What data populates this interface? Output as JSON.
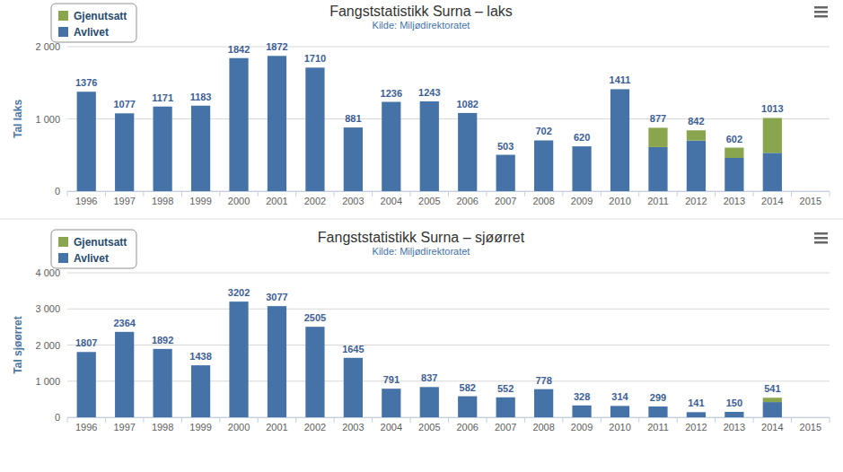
{
  "chart_data": [
    {
      "type": "bar",
      "title": "Fangststatistikk Surna – laks",
      "subtitle": "Kilde: Miljødirektoratet",
      "y_label": "Tal laks",
      "categories": [
        "1996",
        "1997",
        "1998",
        "1999",
        "2000",
        "2001",
        "2002",
        "2003",
        "2004",
        "2005",
        "2006",
        "2007",
        "2008",
        "2009",
        "2010",
        "2011",
        "2012",
        "2013",
        "2014",
        "2015"
      ],
      "series": [
        {
          "name": "Gjenutsatt",
          "color": "#89a54e",
          "values": [
            0,
            0,
            0,
            0,
            0,
            0,
            0,
            0,
            0,
            0,
            0,
            0,
            0,
            0,
            0,
            267,
            142,
            142,
            483,
            null
          ]
        },
        {
          "name": "Avlivet",
          "color": "#4572a7",
          "values": [
            1376,
            1077,
            1171,
            1183,
            1842,
            1872,
            1710,
            881,
            1236,
            1243,
            1082,
            503,
            702,
            620,
            1411,
            610,
            700,
            460,
            530,
            null
          ]
        }
      ],
      "totals": [
        1376,
        1077,
        1171,
        1183,
        1842,
        1872,
        1710,
        881,
        1236,
        1243,
        1082,
        503,
        702,
        620,
        1411,
        877,
        842,
        602,
        1013,
        null
      ],
      "stacked": true,
      "legend": "top-left",
      "grid": true,
      "ylim": [
        0,
        2000
      ],
      "yticks": [
        0,
        {
          "value": 1000,
          "label": "1 000"
        },
        {
          "value": 2000,
          "label": "2 000"
        }
      ]
    },
    {
      "type": "bar",
      "title": "Fangststatistikk Surna – sjøørret",
      "subtitle": "Kilde: Miljødirektoratet",
      "y_label": "Tal sjøørret",
      "categories": [
        "1996",
        "1997",
        "1998",
        "1999",
        "2000",
        "2001",
        "2002",
        "2003",
        "2004",
        "2005",
        "2006",
        "2007",
        "2008",
        "2009",
        "2010",
        "2011",
        "2012",
        "2013",
        "2014",
        "2015"
      ],
      "series": [
        {
          "name": "Gjenutsatt",
          "color": "#89a54e",
          "values": [
            0,
            0,
            0,
            0,
            0,
            0,
            0,
            0,
            0,
            0,
            0,
            0,
            0,
            0,
            0,
            0,
            0,
            0,
            121,
            null
          ]
        },
        {
          "name": "Avlivet",
          "color": "#4572a7",
          "values": [
            1807,
            2364,
            1892,
            1438,
            3202,
            3077,
            2505,
            1645,
            791,
            837,
            582,
            552,
            778,
            328,
            314,
            299,
            141,
            150,
            420,
            null
          ]
        }
      ],
      "totals": [
        1807,
        2364,
        1892,
        1438,
        3202,
        3077,
        2505,
        1645,
        791,
        837,
        582,
        552,
        778,
        328,
        314,
        299,
        141,
        150,
        541,
        null
      ],
      "stacked": true,
      "legend": "top-left",
      "grid": true,
      "ylim": [
        0,
        4000
      ],
      "yticks": [
        0,
        {
          "value": 1000,
          "label": "1 000"
        },
        {
          "value": 2000,
          "label": "2 000"
        },
        {
          "value": 3000,
          "label": "3 000"
        },
        {
          "value": 4000,
          "label": "4 000"
        }
      ]
    }
  ]
}
